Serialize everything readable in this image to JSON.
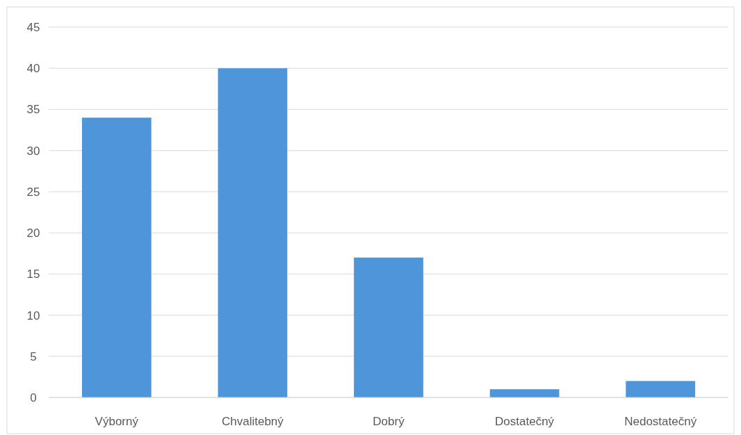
{
  "chart_data": {
    "type": "bar",
    "categories": [
      "Výborný",
      "Chvalitebný",
      "Dobrý",
      "Dostatečný",
      "Nedostatečný"
    ],
    "values": [
      34,
      40,
      17,
      1,
      2
    ],
    "color": "#4f95d9",
    "ylim": [
      0,
      45
    ],
    "yticks": [
      0,
      5,
      10,
      15,
      20,
      25,
      30,
      35,
      40,
      45
    ],
    "grid": "y"
  }
}
